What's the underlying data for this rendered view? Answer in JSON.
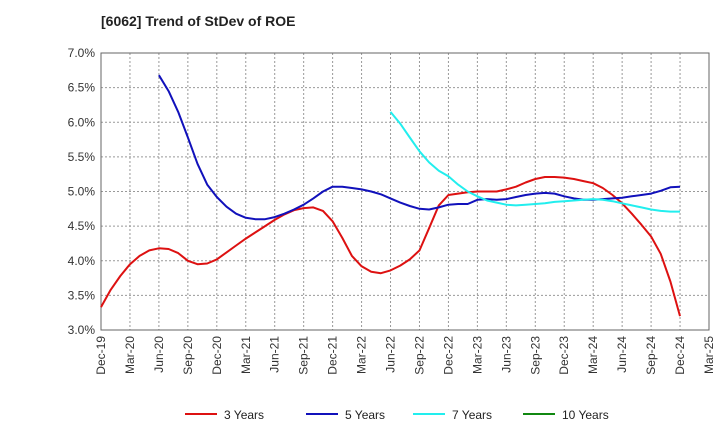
{
  "title": "[6062]  Trend of StDev of ROE",
  "chart_data": {
    "type": "line",
    "title": "[6062]  Trend of StDev of ROE",
    "x_tick_labels": [
      "Dec-19",
      "Mar-20",
      "Jun-20",
      "Sep-20",
      "Dec-20",
      "Mar-21",
      "Jun-21",
      "Sep-21",
      "Dec-21",
      "Mar-22",
      "Jun-22",
      "Sep-22",
      "Dec-22",
      "Mar-23",
      "Jun-23",
      "Sep-23",
      "Dec-23",
      "Mar-24",
      "Jun-24",
      "Sep-24",
      "Dec-24",
      "Mar-25"
    ],
    "y_tick_labels": [
      "3.0%",
      "3.5%",
      "4.0%",
      "4.5%",
      "5.0%",
      "5.5%",
      "6.0%",
      "6.5%",
      "7.0%"
    ],
    "ylim": [
      3.0,
      7.0
    ],
    "x_range_months": [
      0,
      63
    ],
    "grid": true,
    "legend_position": "bottom",
    "series": [
      {
        "name": "3 Years",
        "color": "#dd1111",
        "points": [
          [
            0,
            3.33
          ],
          [
            1,
            3.58
          ],
          [
            2,
            3.78
          ],
          [
            3,
            3.95
          ],
          [
            4,
            4.07
          ],
          [
            5,
            4.15
          ],
          [
            6,
            4.18
          ],
          [
            7,
            4.17
          ],
          [
            8,
            4.11
          ],
          [
            9,
            4.0
          ],
          [
            10,
            3.95
          ],
          [
            11,
            3.96
          ],
          [
            12,
            4.02
          ],
          [
            13,
            4.12
          ],
          [
            14,
            4.22
          ],
          [
            15,
            4.32
          ],
          [
            16,
            4.41
          ],
          [
            17,
            4.5
          ],
          [
            18,
            4.59
          ],
          [
            19,
            4.67
          ],
          [
            20,
            4.73
          ],
          [
            21,
            4.76
          ],
          [
            22,
            4.77
          ],
          [
            23,
            4.72
          ],
          [
            24,
            4.57
          ],
          [
            25,
            4.33
          ],
          [
            26,
            4.07
          ],
          [
            27,
            3.92
          ],
          [
            28,
            3.84
          ],
          [
            29,
            3.82
          ],
          [
            30,
            3.86
          ],
          [
            31,
            3.93
          ],
          [
            32,
            4.02
          ],
          [
            33,
            4.15
          ],
          [
            34,
            4.47
          ],
          [
            35,
            4.8
          ],
          [
            36,
            4.95
          ],
          [
            37,
            4.97
          ],
          [
            38,
            4.99
          ],
          [
            39,
            5.0
          ],
          [
            40,
            5.0
          ],
          [
            41,
            5.0
          ],
          [
            42,
            5.03
          ],
          [
            43,
            5.07
          ],
          [
            44,
            5.13
          ],
          [
            45,
            5.18
          ],
          [
            46,
            5.21
          ],
          [
            47,
            5.21
          ],
          [
            48,
            5.2
          ],
          [
            49,
            5.18
          ],
          [
            50,
            5.15
          ],
          [
            51,
            5.12
          ],
          [
            52,
            5.05
          ],
          [
            53,
            4.95
          ],
          [
            54,
            4.83
          ],
          [
            55,
            4.68
          ],
          [
            56,
            4.52
          ],
          [
            57,
            4.35
          ],
          [
            58,
            4.1
          ],
          [
            59,
            3.7
          ],
          [
            60,
            3.2
          ]
        ]
      },
      {
        "name": "5 Years",
        "color": "#1111bb",
        "points": [
          [
            6,
            6.68
          ],
          [
            7,
            6.45
          ],
          [
            8,
            6.15
          ],
          [
            9,
            5.78
          ],
          [
            10,
            5.4
          ],
          [
            11,
            5.1
          ],
          [
            12,
            4.92
          ],
          [
            13,
            4.78
          ],
          [
            14,
            4.68
          ],
          [
            15,
            4.62
          ],
          [
            16,
            4.6
          ],
          [
            17,
            4.6
          ],
          [
            18,
            4.63
          ],
          [
            19,
            4.68
          ],
          [
            20,
            4.74
          ],
          [
            21,
            4.81
          ],
          [
            22,
            4.9
          ],
          [
            23,
            5.0
          ],
          [
            24,
            5.07
          ],
          [
            25,
            5.07
          ],
          [
            26,
            5.05
          ],
          [
            27,
            5.03
          ],
          [
            28,
            5.0
          ],
          [
            29,
            4.96
          ],
          [
            30,
            4.9
          ],
          [
            31,
            4.84
          ],
          [
            32,
            4.79
          ],
          [
            33,
            4.75
          ],
          [
            34,
            4.74
          ],
          [
            35,
            4.77
          ],
          [
            36,
            4.81
          ],
          [
            37,
            4.82
          ],
          [
            38,
            4.82
          ],
          [
            39,
            4.88
          ],
          [
            40,
            4.89
          ],
          [
            41,
            4.88
          ],
          [
            42,
            4.89
          ],
          [
            43,
            4.92
          ],
          [
            44,
            4.95
          ],
          [
            45,
            4.97
          ],
          [
            46,
            4.98
          ],
          [
            47,
            4.97
          ],
          [
            48,
            4.93
          ],
          [
            49,
            4.9
          ],
          [
            50,
            4.88
          ],
          [
            51,
            4.88
          ],
          [
            52,
            4.89
          ],
          [
            53,
            4.9
          ],
          [
            54,
            4.91
          ],
          [
            55,
            4.93
          ],
          [
            56,
            4.95
          ],
          [
            57,
            4.97
          ],
          [
            58,
            5.01
          ],
          [
            59,
            5.06
          ],
          [
            60,
            5.07
          ]
        ]
      },
      {
        "name": "7 Years",
        "color": "#22eeee",
        "points": [
          [
            30,
            6.15
          ],
          [
            31,
            5.98
          ],
          [
            32,
            5.78
          ],
          [
            33,
            5.58
          ],
          [
            34,
            5.42
          ],
          [
            35,
            5.3
          ],
          [
            36,
            5.22
          ],
          [
            37,
            5.1
          ],
          [
            38,
            5.0
          ],
          [
            39,
            4.93
          ],
          [
            40,
            4.87
          ],
          [
            41,
            4.84
          ],
          [
            42,
            4.81
          ],
          [
            43,
            4.8
          ],
          [
            44,
            4.81
          ],
          [
            45,
            4.82
          ],
          [
            46,
            4.83
          ],
          [
            47,
            4.85
          ],
          [
            48,
            4.86
          ],
          [
            49,
            4.87
          ],
          [
            50,
            4.88
          ],
          [
            51,
            4.89
          ],
          [
            52,
            4.88
          ],
          [
            53,
            4.86
          ],
          [
            54,
            4.83
          ],
          [
            55,
            4.8
          ],
          [
            56,
            4.77
          ],
          [
            57,
            4.74
          ],
          [
            58,
            4.72
          ],
          [
            59,
            4.71
          ],
          [
            60,
            4.71
          ]
        ]
      },
      {
        "name": "10 Years",
        "color": "#118811",
        "points": []
      }
    ]
  }
}
